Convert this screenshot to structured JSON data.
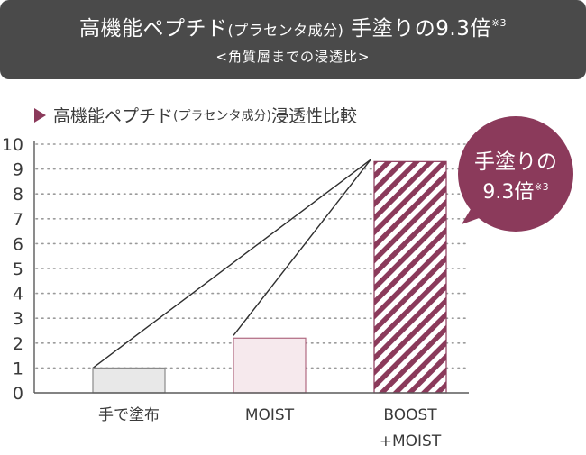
{
  "header": {
    "title_main": "高機能ペプチド",
    "title_paren": "(プラセンタ成分)",
    "title_tail": "手塗りの9.3倍",
    "title_note": "※3",
    "subtitle": "<角質層までの浸透比>"
  },
  "chart_heading": {
    "main": "高機能ペプチド",
    "paren": "(プラセンタ成分)",
    "tail": "浸透性比較"
  },
  "callout": {
    "line1": "手塗りの",
    "line2": "9.3倍",
    "note": "※3"
  },
  "colors": {
    "accent": "#8b3a5b",
    "bar_hand": "#e8e8e8",
    "bar_moist": "#f6e9ed",
    "header_bg": "#4a4a4a"
  },
  "chart_data": {
    "type": "bar",
    "categories": [
      "手で塗布",
      "MOIST",
      "BOOST\n+MOIST"
    ],
    "values": [
      1,
      2.2,
      9.3
    ],
    "ylim": [
      0,
      10
    ],
    "yticks": [
      0,
      1,
      2,
      3,
      4,
      5,
      6,
      7,
      8,
      9,
      10
    ],
    "grid": "dotted-horizontal",
    "title": "高機能ペプチド(プラセンタ成分)浸透性比較",
    "xlabel": "",
    "ylabel": ""
  }
}
